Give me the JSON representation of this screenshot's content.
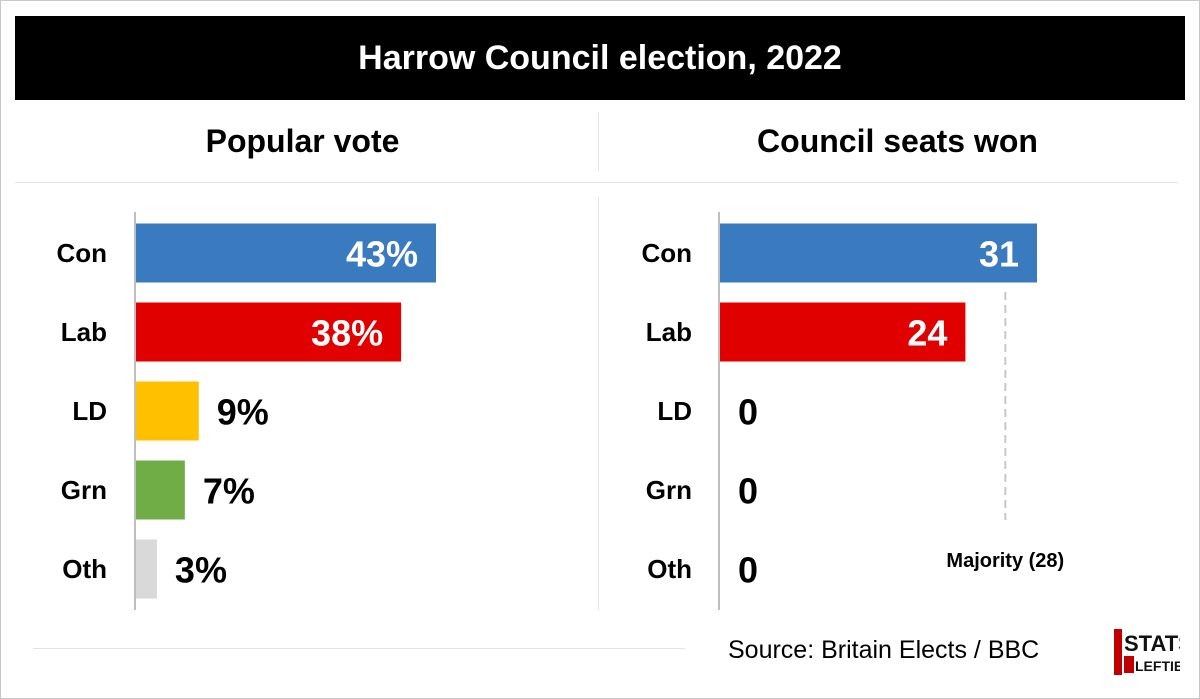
{
  "title": "Harrow Council election, 2022",
  "source": "Source: Britain Elects / BBC",
  "logo": {
    "line1": "STATS",
    "line2": "LEFTIES",
    "text": "STATS FOR LEFTIES"
  },
  "colors": {
    "Con": "#3a7abf",
    "Lab": "#e10000",
    "LD": "#ffc000",
    "Grn": "#70ad47",
    "Oth": "#d9d9d9"
  },
  "chart_data": [
    {
      "type": "bar",
      "orientation": "horizontal",
      "title": "Popular vote",
      "categories": [
        "Con",
        "Lab",
        "LD",
        "Grn",
        "Oth"
      ],
      "values": [
        43,
        38,
        9,
        7,
        3
      ],
      "labels": [
        "43%",
        "38%",
        "9%",
        "7%",
        "3%"
      ],
      "unit": "%",
      "xlim": [
        0,
        43
      ]
    },
    {
      "type": "bar",
      "orientation": "horizontal",
      "title": "Council seats won",
      "categories": [
        "Con",
        "Lab",
        "LD",
        "Grn",
        "Oth"
      ],
      "values": [
        31,
        24,
        0,
        0,
        0
      ],
      "labels": [
        "31",
        "24",
        "0",
        "0",
        "0"
      ],
      "xlim": [
        0,
        31
      ],
      "reference_line": {
        "value": 28,
        "label": "Majority (28)",
        "style": "dashed"
      }
    }
  ]
}
